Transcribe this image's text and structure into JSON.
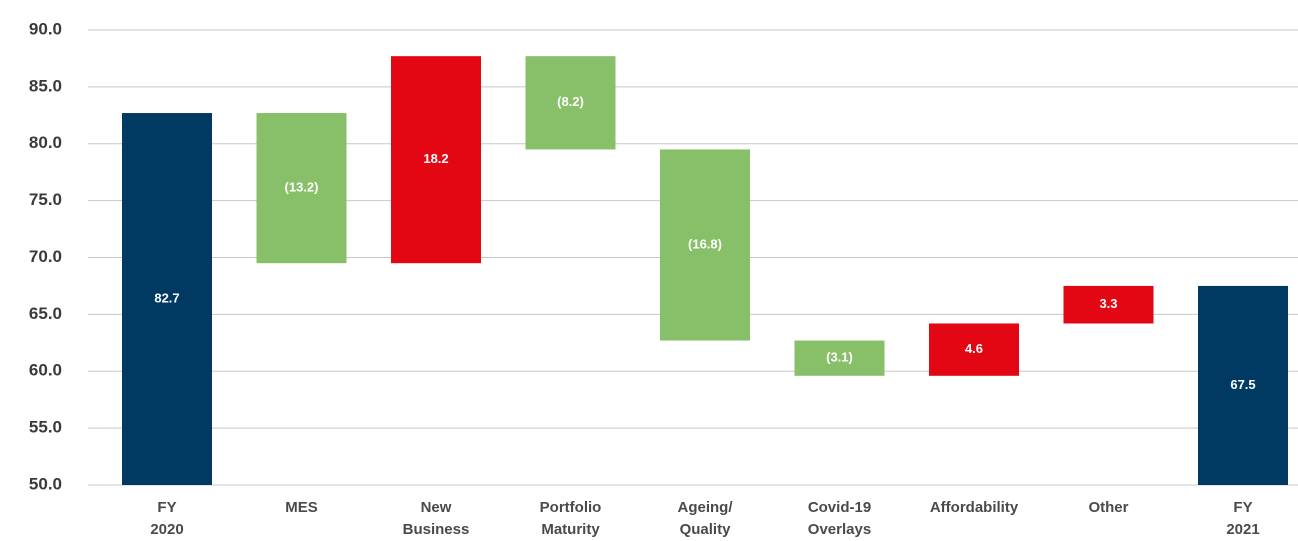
{
  "chart_data": {
    "type": "waterfall",
    "categories": [
      "FY 2020",
      "MES",
      "New Business",
      "Portfolio Maturity",
      "Ageing/ Quality",
      "Covid-19 Overlays",
      "Affordability",
      "Other",
      "FY 2021"
    ],
    "values": [
      82.7,
      -13.2,
      18.2,
      -8.2,
      -16.8,
      -3.1,
      4.6,
      3.3,
      67.5
    ],
    "value_labels": [
      "82.7",
      "(13.2)",
      "18.2",
      "(8.2)",
      "(16.8)",
      "(3.1)",
      "4.6",
      "3.3",
      "67.5"
    ],
    "measures": [
      "total",
      "relative",
      "relative",
      "relative",
      "relative",
      "relative",
      "relative",
      "relative",
      "total"
    ],
    "colors": {
      "total": "#003a63",
      "increase": "#e30613",
      "decrease": "#88c06a"
    },
    "ylim": [
      50,
      90
    ],
    "yticks": [
      {
        "value": 50,
        "label": "50.0"
      },
      {
        "value": 55,
        "label": "55.0"
      },
      {
        "value": 60,
        "label": "60.0"
      },
      {
        "value": 65,
        "label": "65.0"
      },
      {
        "value": 70,
        "label": "70.0"
      },
      {
        "value": 75,
        "label": "75.0"
      },
      {
        "value": 80,
        "label": "80.0"
      },
      {
        "value": 85,
        "label": "85.0"
      },
      {
        "value": 90,
        "label": "90.0"
      }
    ],
    "grid": true
  }
}
